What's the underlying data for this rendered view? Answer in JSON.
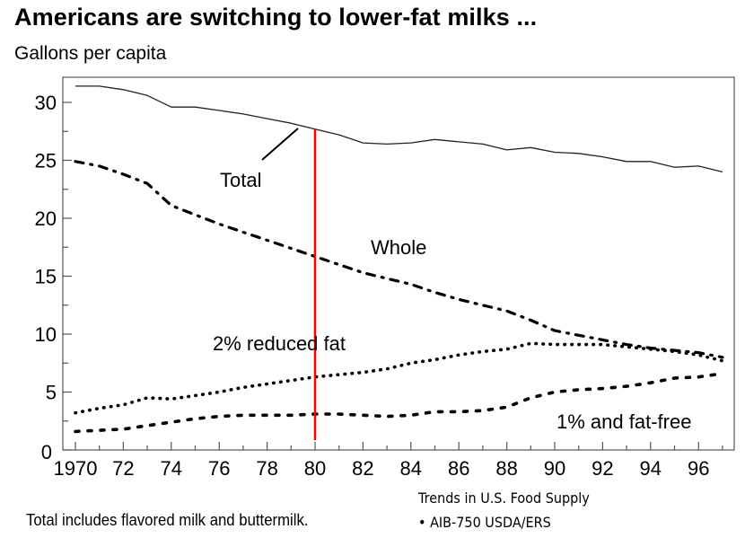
{
  "title": "Americans are switching to lower-fat milks ...",
  "footnote": "Total includes flavored milk and buttermilk.",
  "source": {
    "line1": "Trends in U.S. Food Supply",
    "line2": "• AIB-750 USDA/ERS"
  },
  "colors": {
    "line": "#000000",
    "frame": "#555555",
    "highlight": "#ff0000"
  },
  "chart_data": {
    "type": "line",
    "title": "Americans are switching to lower-fat milks ...",
    "xlabel": "",
    "ylabel": "Gallons per capita",
    "xlim": [
      1969.5,
      1997.5
    ],
    "ylim": [
      0,
      32
    ],
    "grid": false,
    "legend": "none (inline series labels)",
    "x_ticks": [
      1970,
      1972,
      1974,
      1976,
      1978,
      1980,
      1982,
      1984,
      1986,
      1988,
      1990,
      1992,
      1994,
      1996
    ],
    "x_tick_labels": [
      "1970",
      "72",
      "74",
      "76",
      "78",
      "80",
      "82",
      "84",
      "86",
      "88",
      "90",
      "92",
      "94",
      "96"
    ],
    "y_ticks": [
      0,
      5,
      10,
      15,
      20,
      25,
      30
    ],
    "y_tick_labels": [
      "0",
      "5",
      "10",
      "15",
      "20",
      "25",
      "30"
    ],
    "x": [
      1970,
      1971,
      1972,
      1973,
      1974,
      1975,
      1976,
      1977,
      1978,
      1979,
      1980,
      1981,
      1982,
      1983,
      1984,
      1985,
      1986,
      1987,
      1988,
      1989,
      1990,
      1991,
      1992,
      1993,
      1994,
      1995,
      1996,
      1997
    ],
    "series": [
      {
        "name": "Total",
        "style": "solid",
        "values": [
          31.4,
          31.4,
          31.1,
          30.6,
          29.6,
          29.6,
          29.3,
          29.0,
          28.6,
          28.2,
          27.7,
          27.2,
          26.5,
          26.4,
          26.5,
          26.8,
          26.6,
          26.4,
          25.9,
          26.1,
          25.7,
          25.6,
          25.3,
          24.9,
          24.9,
          24.4,
          24.5,
          24.0
        ]
      },
      {
        "name": "Whole",
        "style": "dash-dot",
        "values": [
          24.9,
          24.5,
          23.8,
          23.0,
          21.1,
          20.3,
          19.5,
          18.8,
          18.1,
          17.4,
          16.7,
          16.0,
          15.3,
          14.8,
          14.3,
          13.6,
          13.0,
          12.5,
          12.0,
          11.2,
          10.3,
          9.9,
          9.5,
          9.1,
          8.8,
          8.6,
          8.4,
          8.0
        ]
      },
      {
        "name": "2% reduced fat",
        "style": "dotted",
        "values": [
          3.2,
          3.6,
          3.9,
          4.5,
          4.4,
          4.7,
          5.0,
          5.4,
          5.7,
          6.0,
          6.3,
          6.5,
          6.7,
          7.0,
          7.5,
          7.8,
          8.2,
          8.5,
          8.7,
          9.2,
          9.1,
          9.1,
          9.1,
          8.9,
          8.7,
          8.5,
          8.2,
          7.7
        ]
      },
      {
        "name": "1% and fat-free",
        "style": "dashed",
        "values": [
          1.6,
          1.7,
          1.8,
          2.1,
          2.4,
          2.7,
          2.9,
          3.0,
          3.0,
          3.0,
          3.1,
          3.1,
          3.0,
          2.9,
          3.0,
          3.3,
          3.3,
          3.4,
          3.7,
          4.5,
          5.0,
          5.2,
          5.3,
          5.5,
          5.8,
          6.2,
          6.3,
          6.6
        ]
      }
    ],
    "annotations": [
      {
        "type": "series-label",
        "text": "Total",
        "series": "Total",
        "pointer": true
      },
      {
        "type": "series-label",
        "text": "Whole",
        "series": "Whole"
      },
      {
        "type": "series-label",
        "text": "2% reduced fat",
        "series": "2% reduced fat"
      },
      {
        "type": "series-label",
        "text": "1% and fat-free",
        "series": "1% and fat-free"
      },
      {
        "type": "vertical-marker",
        "x": 1980,
        "from_series": "Total",
        "color": "#ff0000"
      }
    ]
  }
}
